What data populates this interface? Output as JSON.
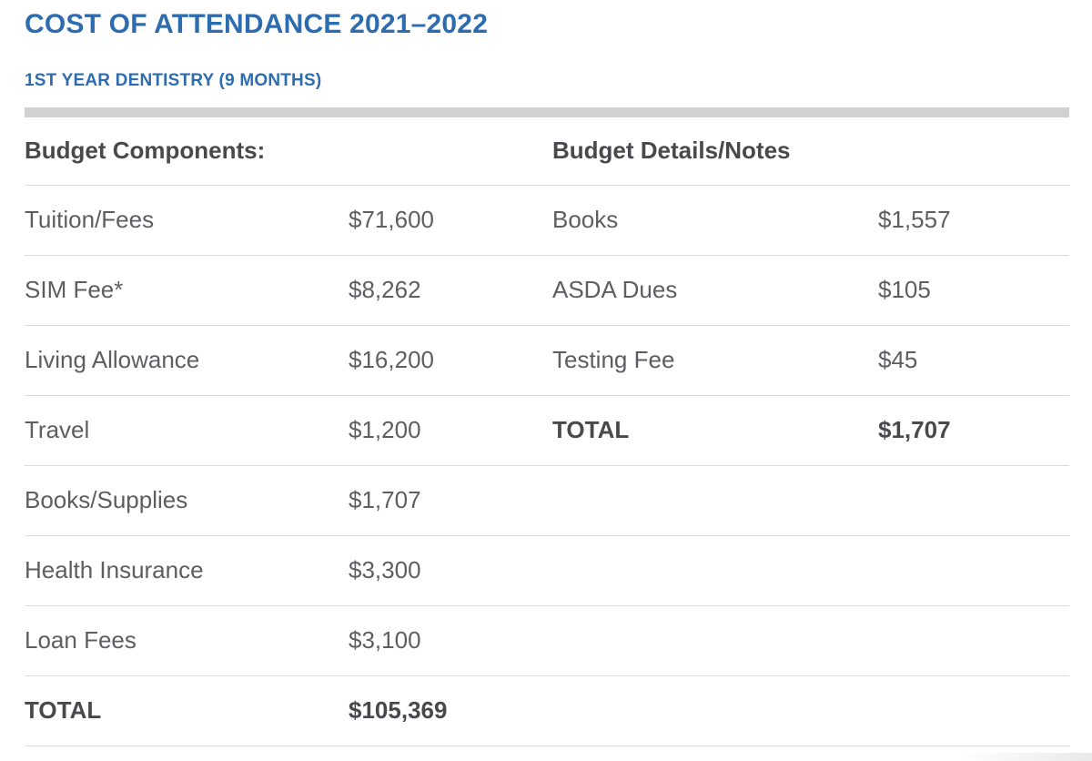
{
  "page": {
    "title": "COST OF ATTENDANCE 2021–2022",
    "subtitle": "1ST YEAR DENTISTRY (9 MONTHS)"
  },
  "colors": {
    "heading_blue": "#2e6cb0",
    "body_text": "#5c5e61",
    "bold_text": "#47494c",
    "divider": "#dadada",
    "section_bar": "#d1d1d1"
  },
  "table": {
    "left_header": "Budget Components:",
    "right_header": "Budget Details/Notes",
    "rows": [
      {
        "left_label": "Tuition/Fees",
        "left_value": "$71,600",
        "right_label": "Books",
        "right_value": "$1,557"
      },
      {
        "left_label": "SIM Fee*",
        "left_value": "$8,262",
        "right_label": "ASDA Dues",
        "right_value": "$105"
      },
      {
        "left_label": "Living Allowance",
        "left_value": "$16,200",
        "right_label": "Testing Fee",
        "right_value": "$45"
      },
      {
        "left_label": "Travel",
        "left_value": "$1,200",
        "right_label": "TOTAL",
        "right_value": "$1,707"
      },
      {
        "left_label": "Books/Supplies",
        "left_value": "$1,707",
        "right_label": "",
        "right_value": ""
      },
      {
        "left_label": "Health Insurance",
        "left_value": "$3,300",
        "right_label": "",
        "right_value": ""
      },
      {
        "left_label": "Loan Fees",
        "left_value": "$3,100",
        "right_label": "",
        "right_value": ""
      },
      {
        "left_label": "TOTAL",
        "left_value": "$105,369",
        "right_label": "",
        "right_value": ""
      }
    ]
  }
}
